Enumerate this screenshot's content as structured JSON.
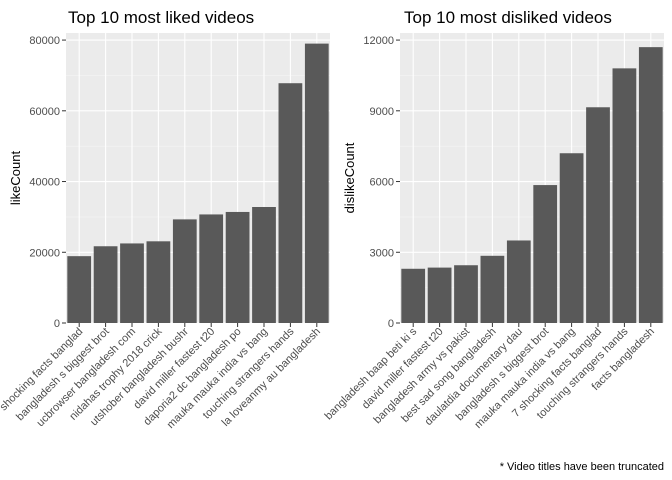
{
  "chart_data": [
    {
      "type": "bar",
      "title": "Top 10 most liked videos",
      "xlabel": "",
      "ylabel": "likeCount",
      "ylim": [
        0,
        82000
      ],
      "yticks": [
        0,
        20000,
        40000,
        60000,
        80000
      ],
      "ytick_labels": [
        "0",
        "20000",
        "40000",
        "60000",
        "80000"
      ],
      "categories": [
        "shocking facts banglad",
        "bangladesh s biggest brot",
        "ucbrowser bangladesh com",
        "nidahas trophy 2018 crick",
        "utshober bangladesh bushr",
        "david miller fastest t20",
        "daporia2 dc bangladesh po",
        "mauka mauka india vs bang",
        "touching strangers hands",
        "la loveanmy au bangladesh"
      ],
      "values": [
        18900,
        21700,
        22500,
        23100,
        29300,
        30700,
        31400,
        32800,
        67800,
        79000
      ],
      "bar_color": "#595959",
      "panel_bg": "#ebebeb",
      "grid": true
    },
    {
      "type": "bar",
      "title": "Top 10 most disliked videos",
      "xlabel": "",
      "ylabel": "dislikeCount",
      "ylim": [
        0,
        12300
      ],
      "yticks": [
        0,
        3000,
        6000,
        9000,
        12000
      ],
      "ytick_labels": [
        "0",
        "3000",
        "6000",
        "9000",
        "12000"
      ],
      "categories": [
        "bangladesh baap beti ki s",
        "david miller fastest t20",
        "bangladesh army vs pakist",
        "best sad song bangladesh",
        "daulatdia documentary dau",
        "bangladesh s biggest brot",
        "mauka mauka india vs bang",
        "7 shocking facts banglad",
        "touching strangers hands",
        "facts bangladesh"
      ],
      "values": [
        2300,
        2350,
        2450,
        2850,
        3500,
        5850,
        7200,
        9150,
        10800,
        11700
      ],
      "bar_color": "#595959",
      "panel_bg": "#ebebeb",
      "grid": true
    }
  ],
  "caption": "* Video titles have been truncated"
}
